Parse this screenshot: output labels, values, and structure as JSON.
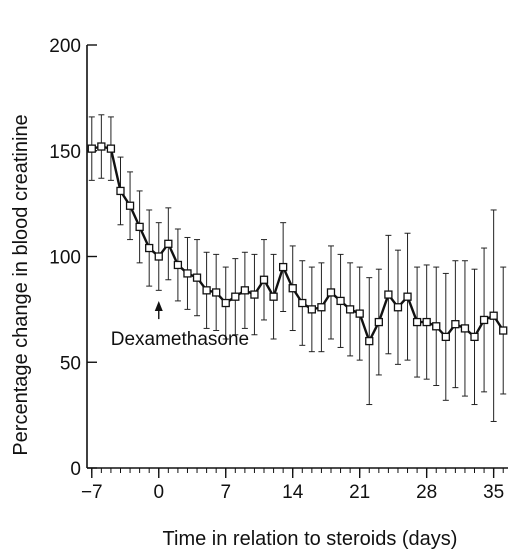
{
  "chart_data": {
    "type": "line",
    "title": "",
    "xlabel": "Time in relation to steroids (days)",
    "ylabel": "Percentage change in blood creatinine",
    "xlim": [
      -7.5,
      36.5
    ],
    "ylim": [
      0,
      200
    ],
    "x_ticks": [
      -7,
      0,
      7,
      14,
      21,
      28,
      35
    ],
    "x_tick_labels": [
      "−7",
      "0",
      "7",
      "14",
      "21",
      "28",
      "35"
    ],
    "y_ticks": [
      0,
      50,
      100,
      150,
      200
    ],
    "y_tick_labels": [
      "0",
      "50",
      "100",
      "150",
      "200"
    ],
    "grid": false,
    "legend": "none",
    "marker": "open-square",
    "error_bars": true,
    "series": [
      {
        "x": [
          -7,
          -6,
          -5,
          -4,
          -3,
          -2,
          -1,
          0,
          1,
          2,
          3,
          4,
          5,
          6,
          7,
          8,
          9,
          10,
          11,
          12,
          13,
          14,
          15,
          16,
          17,
          18,
          19,
          20,
          21,
          22,
          23,
          24,
          25,
          26,
          27,
          28,
          29,
          30,
          31,
          32,
          33,
          34,
          35,
          36
        ],
        "y": [
          151,
          152,
          151,
          131,
          124,
          114,
          104,
          100,
          106,
          96,
          92,
          90,
          84,
          83,
          78,
          81,
          84,
          82,
          89,
          81,
          95,
          85,
          78,
          75,
          76,
          83,
          79,
          75,
          73,
          60,
          69,
          82,
          76,
          81,
          69,
          69,
          67,
          62,
          68,
          66,
          62,
          70,
          72,
          65
        ],
        "err": [
          15,
          15,
          15,
          16,
          16,
          17,
          18,
          16,
          17,
          17,
          17,
          18,
          18,
          18,
          17,
          18,
          18,
          19,
          19,
          20,
          21,
          20,
          20,
          20,
          21,
          22,
          22,
          22,
          22,
          30,
          25,
          28,
          27,
          30,
          26,
          27,
          28,
          30,
          30,
          32,
          32,
          34,
          50,
          30
        ]
      }
    ],
    "annotations": [
      {
        "text": "Dexamethasone",
        "x": 0,
        "y": 60,
        "arrow_to": [
          0,
          78
        ]
      }
    ]
  }
}
